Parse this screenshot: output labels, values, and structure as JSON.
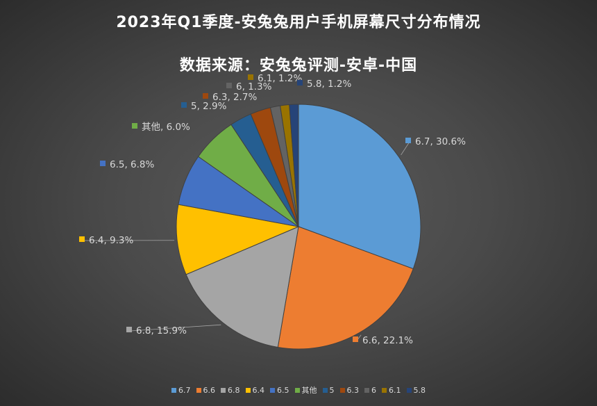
{
  "chart_data": {
    "type": "pie",
    "title": "2023年Q1季度-安兔兔用户手机屏幕尺寸分布情况",
    "subtitle": "数据来源：安兔兔评测-安卓-中国",
    "legend_position": "bottom",
    "slices": [
      {
        "name": "6.7",
        "value": 30.6,
        "label": "6.7, 30.6%",
        "color": "#5b9bd5"
      },
      {
        "name": "6.6",
        "value": 22.1,
        "label": "6.6, 22.1%",
        "color": "#ed7d31"
      },
      {
        "name": "6.8",
        "value": 15.9,
        "label": "6.8, 15.9%",
        "color": "#a5a5a5"
      },
      {
        "name": "6.4",
        "value": 9.3,
        "label": "6.4, 9.3%",
        "color": "#ffc000"
      },
      {
        "name": "6.5",
        "value": 6.8,
        "label": "6.5, 6.8%",
        "color": "#4472c4"
      },
      {
        "name": "其他",
        "value": 6.0,
        "label": "其他, 6.0%",
        "color": "#70ad47"
      },
      {
        "name": "5",
        "value": 2.9,
        "label": "5, 2.9%",
        "color": "#255e91"
      },
      {
        "name": "6.3",
        "value": 2.7,
        "label": "6.3, 2.7%",
        "color": "#9e480e"
      },
      {
        "name": "6",
        "value": 1.3,
        "label": "6, 1.3%",
        "color": "#636363"
      },
      {
        "name": "6.1",
        "value": 1.2,
        "label": "6.1, 1.2%",
        "color": "#997300"
      },
      {
        "name": "5.8",
        "value": 1.2,
        "label": "5.8, 1.2%",
        "color": "#264478"
      }
    ]
  }
}
